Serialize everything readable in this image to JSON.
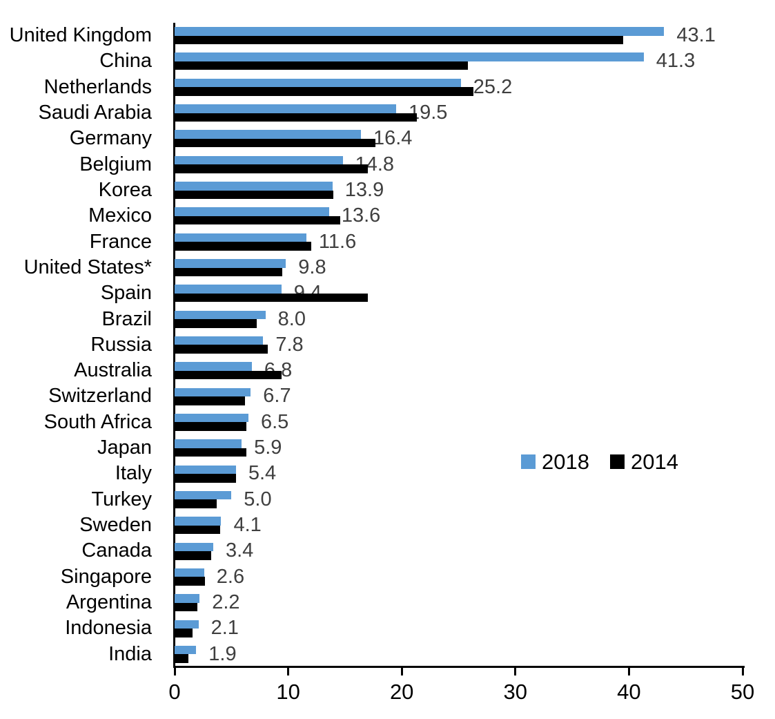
{
  "chart_data": {
    "type": "bar",
    "orientation": "horizontal",
    "title": "",
    "xlabel": "",
    "ylabel": "",
    "xlim": [
      0,
      50
    ],
    "xticks": [
      "0",
      "10",
      "20",
      "30",
      "40",
      "50"
    ],
    "grid": false,
    "legend_position": "inside-right-middle",
    "categories": [
      "United Kingdom",
      "China",
      "Netherlands",
      "Saudi Arabia",
      "Germany",
      "Belgium",
      "Korea",
      "Mexico",
      "France",
      "United States*",
      "Spain",
      "Brazil",
      "Russia",
      "Australia",
      "Switzerland",
      "South Africa",
      "Japan",
      "Italy",
      "Turkey",
      "Sweden",
      "Canada",
      "Singapore",
      "Argentina",
      "Indonesia",
      "India"
    ],
    "series": [
      {
        "name": "2018",
        "color": "#5B9BD5",
        "values": [
          43.1,
          41.3,
          25.2,
          19.5,
          16.4,
          14.8,
          13.9,
          13.6,
          11.6,
          9.8,
          9.4,
          8.0,
          7.8,
          6.8,
          6.7,
          6.5,
          5.9,
          5.4,
          5.0,
          4.1,
          3.4,
          2.6,
          2.2,
          2.1,
          1.9
        ]
      },
      {
        "name": "2014",
        "color": "#000000",
        "values": [
          39.5,
          25.8,
          26.3,
          21.3,
          17.7,
          17.0,
          14.0,
          14.6,
          12.0,
          9.5,
          17.0,
          7.2,
          8.2,
          9.4,
          6.2,
          6.3,
          6.3,
          5.4,
          3.7,
          4.0,
          3.2,
          2.7,
          2.0,
          1.6,
          1.2
        ]
      }
    ],
    "data_labels": [
      "43.1",
      "41.3",
      "25.2",
      "19.5",
      "16.4",
      "14.8",
      "13.9",
      "13.6",
      "11.6",
      "9.8",
      "9.4",
      "8.0",
      "7.8",
      "6.8",
      "6.7",
      "6.5",
      "5.9",
      "5.4",
      "5.0",
      "4.1",
      "3.4",
      "2.6",
      "2.2",
      "2.1",
      "1.9"
    ],
    "data_labels_series": "2018"
  }
}
